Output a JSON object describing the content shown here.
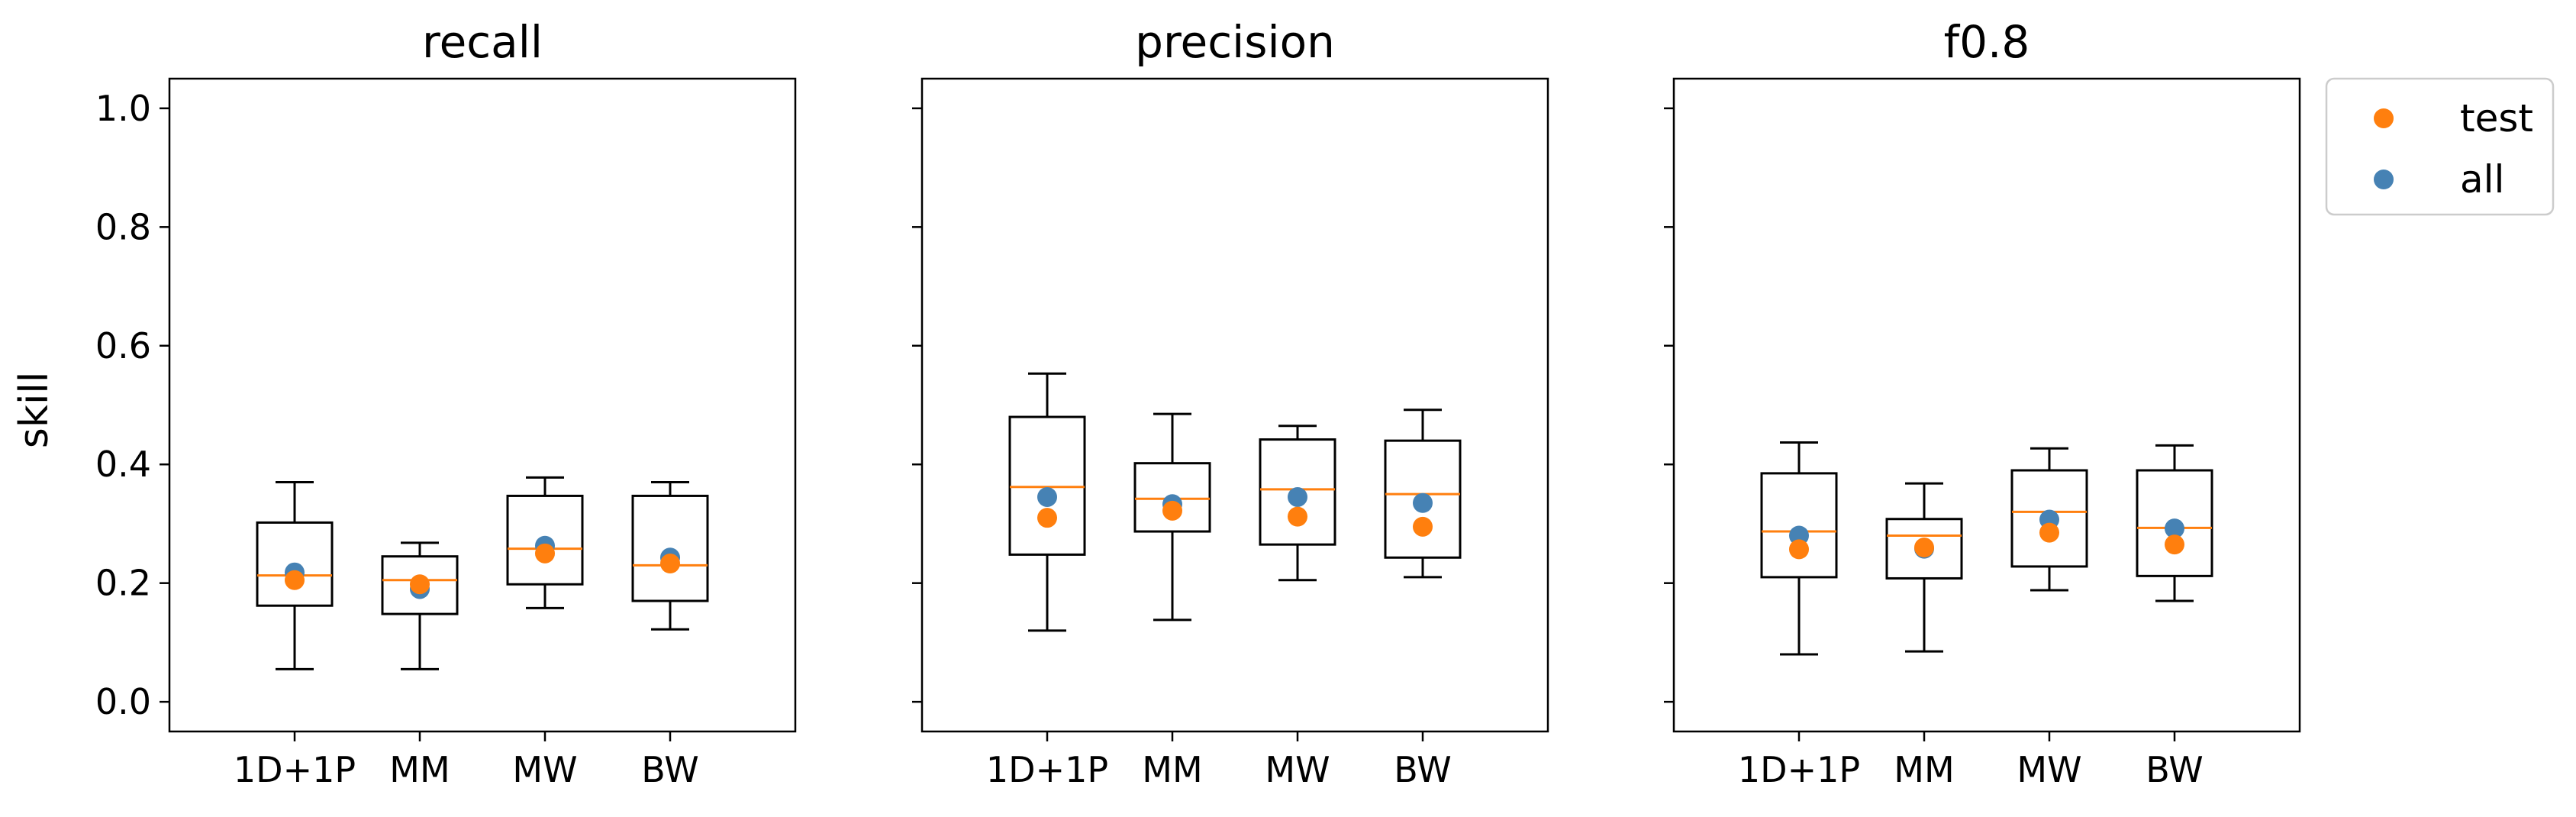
{
  "chart_data": {
    "type": "box",
    "ylabel": "skill",
    "ylim": [
      -0.05,
      1.05
    ],
    "yticks": [
      0.0,
      0.2,
      0.4,
      0.6,
      0.8,
      1.0
    ],
    "ytick_labels": [
      "0.0",
      "0.2",
      "0.4",
      "0.6",
      "0.8",
      "1.0"
    ],
    "grid": false,
    "legend_position": "outside-right-top",
    "categories": [
      "1D+1P",
      "MM",
      "MW",
      "BW"
    ],
    "markers": [
      {
        "name": "test",
        "color": "#ff7f0e"
      },
      {
        "name": "all",
        "color": "#4682b4"
      }
    ],
    "median_color": "#ff7f0e",
    "panels": [
      {
        "title": "recall",
        "boxes": [
          {
            "whisker_low": 0.055,
            "q1": 0.162,
            "median": 0.213,
            "q3": 0.302,
            "whisker_high": 0.37
          },
          {
            "whisker_low": 0.055,
            "q1": 0.148,
            "median": 0.205,
            "q3": 0.245,
            "whisker_high": 0.268
          },
          {
            "whisker_low": 0.158,
            "q1": 0.198,
            "median": 0.258,
            "q3": 0.347,
            "whisker_high": 0.378
          },
          {
            "whisker_low": 0.122,
            "q1": 0.17,
            "median": 0.23,
            "q3": 0.347,
            "whisker_high": 0.37
          }
        ],
        "test": [
          0.205,
          0.198,
          0.25,
          0.233
        ],
        "all": [
          0.218,
          0.19,
          0.263,
          0.243
        ]
      },
      {
        "title": "precision",
        "boxes": [
          {
            "whisker_low": 0.12,
            "q1": 0.248,
            "median": 0.362,
            "q3": 0.48,
            "whisker_high": 0.553
          },
          {
            "whisker_low": 0.138,
            "q1": 0.287,
            "median": 0.342,
            "q3": 0.402,
            "whisker_high": 0.485
          },
          {
            "whisker_low": 0.205,
            "q1": 0.265,
            "median": 0.358,
            "q3": 0.442,
            "whisker_high": 0.465
          },
          {
            "whisker_low": 0.21,
            "q1": 0.243,
            "median": 0.35,
            "q3": 0.44,
            "whisker_high": 0.492
          }
        ],
        "test": [
          0.31,
          0.322,
          0.312,
          0.295
        ],
        "all": [
          0.345,
          0.333,
          0.345,
          0.335
        ]
      },
      {
        "title": "f0.8",
        "boxes": [
          {
            "whisker_low": 0.08,
            "q1": 0.21,
            "median": 0.287,
            "q3": 0.385,
            "whisker_high": 0.437
          },
          {
            "whisker_low": 0.085,
            "q1": 0.208,
            "median": 0.28,
            "q3": 0.308,
            "whisker_high": 0.368
          },
          {
            "whisker_low": 0.188,
            "q1": 0.228,
            "median": 0.32,
            "q3": 0.39,
            "whisker_high": 0.427
          },
          {
            "whisker_low": 0.17,
            "q1": 0.212,
            "median": 0.293,
            "q3": 0.39,
            "whisker_high": 0.432
          }
        ],
        "test": [
          0.257,
          0.26,
          0.285,
          0.265
        ],
        "all": [
          0.28,
          0.258,
          0.307,
          0.292
        ]
      }
    ]
  }
}
